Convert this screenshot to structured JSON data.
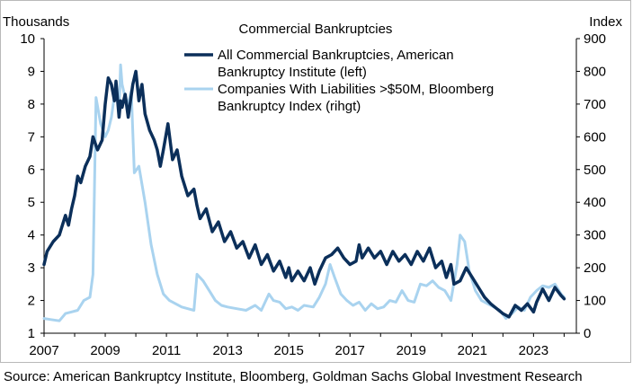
{
  "source": "Source: American Bankruptcy Institute, Bloomberg, Goldman Sachs Global Investment Research",
  "colors": {
    "bankruptcies": "#0b2f5a",
    "large_companies": "#a9d3ef"
  },
  "chart_data": {
    "type": "line",
    "title": "Commercial  Bankruptcies",
    "left_axis_unit": "Thousands",
    "right_axis_unit": "Index",
    "x_ticks": [
      "2007",
      "2009",
      "2011",
      "2013",
      "2015",
      "2017",
      "2019",
      "2021",
      "2023"
    ],
    "xlim": [
      2007,
      2024.4
    ],
    "ylim_left": [
      1,
      10
    ],
    "ylim_right": [
      0,
      900
    ],
    "y_left_ticks": [
      "1",
      "2",
      "3",
      "4",
      "5",
      "6",
      "7",
      "8",
      "9",
      "10"
    ],
    "y_right_ticks": [
      "0",
      "100",
      "200",
      "300",
      "400",
      "500",
      "600",
      "700",
      "800",
      "900"
    ],
    "legend_position": "top-center",
    "grid": false,
    "series": [
      {
        "name": "All Commercial Bankruptcies, American Bankruptcy Institute (left)",
        "legend_lines": [
          "All Commercial Bankruptcies, American",
          "Bankruptcy Institute (left)"
        ],
        "axis": "left",
        "color": "#0b2f5a",
        "x": [
          2007.0,
          2007.1,
          2007.3,
          2007.5,
          2007.7,
          2007.8,
          2007.9,
          2008.0,
          2008.1,
          2008.2,
          2008.35,
          2008.5,
          2008.6,
          2008.75,
          2008.9,
          2009.0,
          2009.1,
          2009.2,
          2009.3,
          2009.35,
          2009.45,
          2009.5,
          2009.55,
          2009.65,
          2009.75,
          2009.9,
          2010.0,
          2010.1,
          2010.2,
          2010.3,
          2010.45,
          2010.6,
          2010.7,
          2010.8,
          2010.9,
          2011.05,
          2011.2,
          2011.35,
          2011.5,
          2011.7,
          2011.9,
          2012.0,
          2012.1,
          2012.3,
          2012.5,
          2012.7,
          2012.9,
          2013.1,
          2013.3,
          2013.5,
          2013.7,
          2013.9,
          2014.1,
          2014.3,
          2014.5,
          2014.7,
          2014.9,
          2015.0,
          2015.1,
          2015.3,
          2015.5,
          2015.7,
          2015.85,
          2016.0,
          2016.2,
          2016.4,
          2016.6,
          2016.8,
          2017.0,
          2017.2,
          2017.3,
          2017.4,
          2017.6,
          2017.8,
          2018.0,
          2018.2,
          2018.4,
          2018.6,
          2018.8,
          2019.0,
          2019.2,
          2019.4,
          2019.6,
          2019.8,
          2020.0,
          2020.15,
          2020.3,
          2020.4,
          2020.6,
          2020.8,
          2021.0,
          2021.2,
          2021.4,
          2021.6,
          2021.8,
          2022.0,
          2022.2,
          2022.4,
          2022.6,
          2022.8,
          2023.0,
          2023.1,
          2023.3,
          2023.5,
          2023.7,
          2023.9,
          2024.0
        ],
        "y": [
          3.1,
          3.5,
          3.8,
          4.0,
          4.6,
          4.3,
          4.8,
          5.2,
          5.8,
          5.6,
          6.1,
          6.4,
          7.0,
          6.6,
          6.9,
          8.0,
          8.8,
          8.6,
          8.1,
          8.7,
          7.6,
          8.1,
          7.9,
          8.3,
          7.6,
          8.6,
          9.0,
          8.1,
          8.6,
          7.7,
          7.2,
          6.9,
          6.6,
          6.1,
          6.6,
          7.4,
          6.3,
          6.6,
          5.8,
          5.2,
          5.4,
          4.9,
          4.5,
          4.8,
          4.1,
          4.4,
          3.8,
          4.1,
          3.6,
          3.8,
          3.3,
          3.7,
          3.1,
          3.4,
          2.9,
          3.2,
          2.7,
          3.0,
          2.6,
          2.9,
          2.6,
          3.0,
          2.5,
          2.9,
          3.3,
          3.4,
          3.6,
          3.3,
          3.1,
          3.2,
          3.7,
          3.3,
          3.6,
          3.3,
          3.5,
          3.1,
          3.5,
          3.2,
          3.4,
          3.1,
          3.5,
          3.2,
          3.6,
          3.0,
          3.2,
          2.7,
          3.1,
          2.5,
          2.6,
          3.0,
          2.7,
          2.4,
          2.1,
          1.9,
          1.75,
          1.6,
          1.5,
          1.85,
          1.7,
          1.9,
          1.65,
          1.95,
          2.35,
          2.0,
          2.4,
          2.15,
          2.05
        ]
      },
      {
        "name": "Companies With Liabilities >$50M, Bloomberg Bankruptcy Index (rihgt)",
        "legend_lines": [
          "Companies With Liabilities >$50M, Bloomberg",
          "Bankruptcy Index (rihgt)"
        ],
        "axis": "right",
        "color": "#a9d3ef",
        "x": [
          2007.0,
          2007.2,
          2007.5,
          2007.7,
          2007.9,
          2008.1,
          2008.3,
          2008.5,
          2008.6,
          2008.7,
          2008.85,
          2009.0,
          2009.1,
          2009.2,
          2009.35,
          2009.45,
          2009.5,
          2009.55,
          2009.65,
          2009.75,
          2009.85,
          2009.95,
          2010.1,
          2010.3,
          2010.5,
          2010.7,
          2010.9,
          2011.1,
          2011.3,
          2011.5,
          2011.7,
          2011.9,
          2012.0,
          2012.2,
          2012.4,
          2012.6,
          2012.8,
          2013.0,
          2013.3,
          2013.6,
          2013.9,
          2014.1,
          2014.35,
          2014.5,
          2014.7,
          2014.9,
          2015.1,
          2015.3,
          2015.5,
          2015.8,
          2016.0,
          2016.2,
          2016.35,
          2016.5,
          2016.7,
          2016.9,
          2017.1,
          2017.3,
          2017.5,
          2017.7,
          2017.9,
          2018.1,
          2018.3,
          2018.5,
          2018.7,
          2018.9,
          2019.1,
          2019.3,
          2019.5,
          2019.7,
          2019.9,
          2020.1,
          2020.3,
          2020.5,
          2020.6,
          2020.75,
          2020.9,
          2021.1,
          2021.3,
          2021.5,
          2021.7,
          2021.9,
          2022.1,
          2022.3,
          2022.5,
          2022.7,
          2022.9,
          2023.1,
          2023.3,
          2023.5,
          2023.7,
          2023.9,
          2024.0
        ],
        "y": [
          45,
          42,
          38,
          60,
          65,
          70,
          100,
          110,
          180,
          720,
          640,
          600,
          620,
          660,
          760,
          680,
          820,
          760,
          720,
          700,
          740,
          490,
          510,
          400,
          270,
          180,
          120,
          100,
          90,
          80,
          75,
          70,
          180,
          160,
          130,
          100,
          85,
          80,
          75,
          70,
          85,
          70,
          120,
          100,
          95,
          75,
          80,
          70,
          85,
          80,
          110,
          150,
          210,
          170,
          120,
          100,
          85,
          95,
          70,
          90,
          75,
          80,
          100,
          95,
          130,
          100,
          95,
          150,
          145,
          160,
          140,
          130,
          100,
          210,
          300,
          280,
          190,
          130,
          100,
          90,
          80,
          70,
          45,
          60,
          80,
          70,
          110,
          130,
          145,
          140,
          150,
          120,
          110
        ]
      }
    ]
  }
}
